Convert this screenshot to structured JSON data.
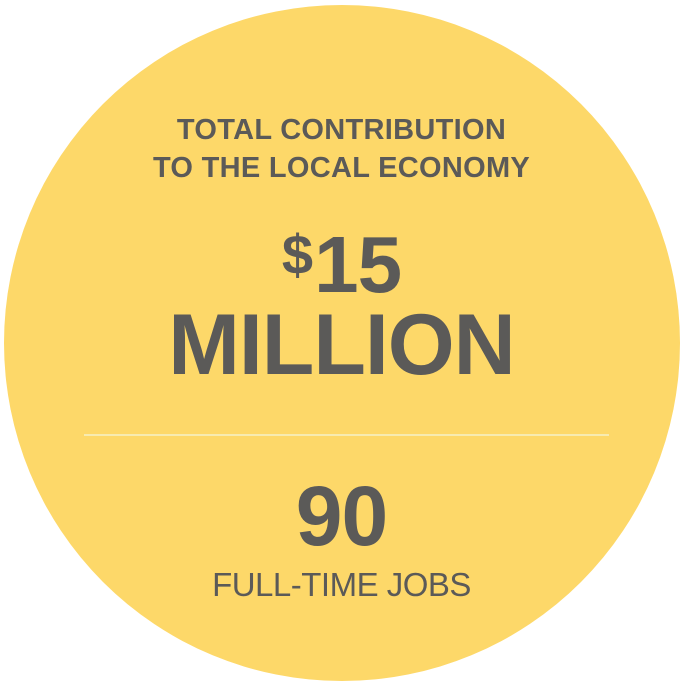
{
  "heading": {
    "line1": "TOTAL CONTRIBUTION",
    "line2": "TO THE LOCAL ECONOMY"
  },
  "contribution": {
    "currency_symbol": "$",
    "amount": "15",
    "unit": "MILLION"
  },
  "jobs": {
    "number": "90",
    "label": "FULL-TIME JOBS"
  },
  "colors": {
    "circle": "#fdd869",
    "text": "#5b5a58",
    "divider": "#f7ebb0"
  }
}
